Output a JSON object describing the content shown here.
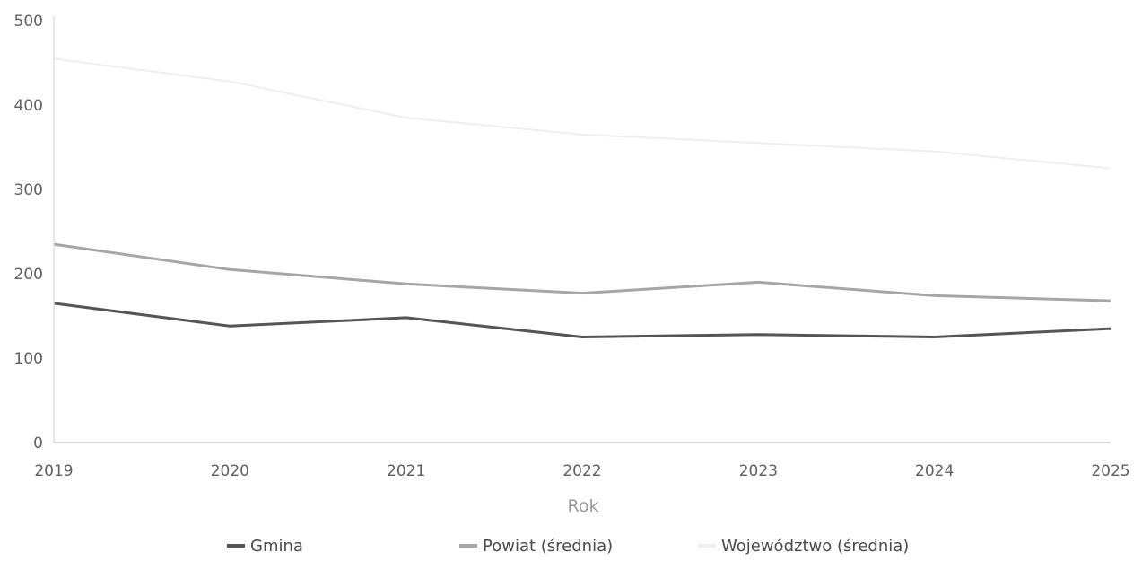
{
  "chart_data": {
    "type": "line",
    "title": "",
    "xlabel": "Rok",
    "ylabel": "",
    "x": [
      "2019",
      "2020",
      "2021",
      "2022",
      "2023",
      "2024",
      "2025"
    ],
    "ylim": [
      0,
      500
    ],
    "yticks": [
      "0",
      "100",
      "200",
      "300",
      "400",
      "500"
    ],
    "grid": false,
    "legend_position": "bottom",
    "series": [
      {
        "name": "Gmina",
        "color": "#555555",
        "values": [
          165,
          138,
          148,
          125,
          128,
          125,
          135
        ]
      },
      {
        "name": "Powiat (średnia)",
        "color": "#a6a6a6",
        "values": [
          235,
          205,
          188,
          177,
          190,
          174,
          168
        ]
      },
      {
        "name": "Województwo (średnia)",
        "color": "#eeeeee",
        "values": [
          455,
          428,
          385,
          365,
          355,
          345,
          325
        ]
      }
    ]
  }
}
